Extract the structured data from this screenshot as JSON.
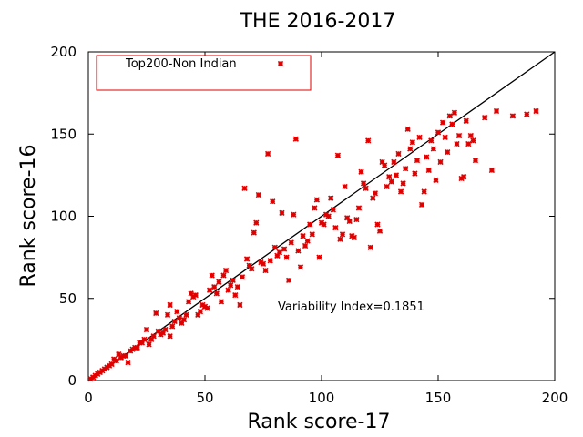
{
  "chart_data": {
    "type": "scatter",
    "title": "THE 2016-2017",
    "xlabel": "Rank score-17",
    "ylabel": "Rank score-16",
    "xlim": [
      0,
      200
    ],
    "ylim": [
      0,
      200
    ],
    "xticks": [
      0,
      50,
      100,
      150,
      200
    ],
    "yticks": [
      0,
      50,
      100,
      150,
      200
    ],
    "grid": false,
    "legend_position": "top-left",
    "reference_line": {
      "from": [
        0,
        0
      ],
      "to": [
        200,
        200
      ],
      "color": "#000000"
    },
    "annotation": "Variability Index=0.1851",
    "series": [
      {
        "name": "Top200-Non Indian",
        "color": "#e00000",
        "marker": "cross",
        "points": [
          [
            1,
            1
          ],
          [
            2,
            2
          ],
          [
            3,
            3
          ],
          [
            4,
            4
          ],
          [
            5,
            5
          ],
          [
            6,
            6
          ],
          [
            7,
            7
          ],
          [
            8,
            8
          ],
          [
            9,
            9
          ],
          [
            10,
            10
          ],
          [
            11,
            13
          ],
          [
            12,
            12
          ],
          [
            13,
            16
          ],
          [
            14,
            14
          ],
          [
            15,
            15
          ],
          [
            16,
            15
          ],
          [
            17,
            11
          ],
          [
            18,
            18
          ],
          [
            19,
            19
          ],
          [
            20,
            20
          ],
          [
            21,
            20
          ],
          [
            22,
            23
          ],
          [
            23,
            23
          ],
          [
            24,
            25
          ],
          [
            25,
            31
          ],
          [
            26,
            22
          ],
          [
            27,
            25
          ],
          [
            28,
            27
          ],
          [
            29,
            41
          ],
          [
            30,
            30
          ],
          [
            31,
            28
          ],
          [
            32,
            29
          ],
          [
            33,
            31
          ],
          [
            34,
            40
          ],
          [
            35,
            46
          ],
          [
            35,
            27
          ],
          [
            36,
            33
          ],
          [
            37,
            36
          ],
          [
            38,
            42
          ],
          [
            39,
            38
          ],
          [
            40,
            35
          ],
          [
            41,
            37
          ],
          [
            42,
            40
          ],
          [
            43,
            48
          ],
          [
            44,
            53
          ],
          [
            45,
            51
          ],
          [
            46,
            52
          ],
          [
            47,
            40
          ],
          [
            48,
            42
          ],
          [
            49,
            46
          ],
          [
            50,
            45
          ],
          [
            51,
            44
          ],
          [
            52,
            55
          ],
          [
            53,
            64
          ],
          [
            54,
            57
          ],
          [
            55,
            53
          ],
          [
            56,
            60
          ],
          [
            57,
            48
          ],
          [
            58,
            64
          ],
          [
            59,
            67
          ],
          [
            60,
            55
          ],
          [
            61,
            58
          ],
          [
            62,
            61
          ],
          [
            63,
            52
          ],
          [
            64,
            57
          ],
          [
            65,
            46
          ],
          [
            66,
            63
          ],
          [
            67,
            117
          ],
          [
            68,
            74
          ],
          [
            69,
            70
          ],
          [
            70,
            68
          ],
          [
            71,
            90
          ],
          [
            72,
            96
          ],
          [
            73,
            113
          ],
          [
            74,
            72
          ],
          [
            75,
            71
          ],
          [
            76,
            67
          ],
          [
            77,
            138
          ],
          [
            78,
            73
          ],
          [
            79,
            109
          ],
          [
            80,
            81
          ],
          [
            81,
            76
          ],
          [
            82,
            78
          ],
          [
            83,
            102
          ],
          [
            84,
            80
          ],
          [
            85,
            75
          ],
          [
            86,
            61
          ],
          [
            87,
            84
          ],
          [
            88,
            101
          ],
          [
            89,
            147
          ],
          [
            90,
            79
          ],
          [
            91,
            69
          ],
          [
            92,
            88
          ],
          [
            93,
            82
          ],
          [
            94,
            85
          ],
          [
            95,
            95
          ],
          [
            96,
            89
          ],
          [
            97,
            105
          ],
          [
            98,
            110
          ],
          [
            99,
            75
          ],
          [
            100,
            96
          ],
          [
            101,
            95
          ],
          [
            102,
            101
          ],
          [
            103,
            100
          ],
          [
            104,
            111
          ],
          [
            105,
            104
          ],
          [
            106,
            93
          ],
          [
            107,
            137
          ],
          [
            108,
            86
          ],
          [
            109,
            89
          ],
          [
            110,
            118
          ],
          [
            111,
            99
          ],
          [
            112,
            97
          ],
          [
            113,
            88
          ],
          [
            114,
            87
          ],
          [
            115,
            98
          ],
          [
            116,
            105
          ],
          [
            117,
            127
          ],
          [
            118,
            120
          ],
          [
            119,
            117
          ],
          [
            120,
            146
          ],
          [
            121,
            81
          ],
          [
            122,
            111
          ],
          [
            123,
            114
          ],
          [
            124,
            95
          ],
          [
            125,
            91
          ],
          [
            126,
            133
          ],
          [
            127,
            131
          ],
          [
            128,
            118
          ],
          [
            129,
            124
          ],
          [
            130,
            121
          ],
          [
            131,
            133
          ],
          [
            132,
            125
          ],
          [
            133,
            138
          ],
          [
            134,
            115
          ],
          [
            135,
            120
          ],
          [
            136,
            129
          ],
          [
            137,
            153
          ],
          [
            138,
            141
          ],
          [
            139,
            145
          ],
          [
            140,
            126
          ],
          [
            141,
            134
          ],
          [
            142,
            148
          ],
          [
            143,
            107
          ],
          [
            144,
            115
          ],
          [
            145,
            136
          ],
          [
            146,
            128
          ],
          [
            147,
            146
          ],
          [
            148,
            141
          ],
          [
            149,
            122
          ],
          [
            150,
            151
          ],
          [
            151,
            133
          ],
          [
            152,
            157
          ],
          [
            153,
            148
          ],
          [
            154,
            139
          ],
          [
            155,
            161
          ],
          [
            156,
            156
          ],
          [
            157,
            163
          ],
          [
            158,
            144
          ],
          [
            159,
            149
          ],
          [
            160,
            123
          ],
          [
            161,
            124
          ],
          [
            162,
            158
          ],
          [
            163,
            144
          ],
          [
            164,
            149
          ],
          [
            165,
            146
          ],
          [
            166,
            134
          ],
          [
            170,
            160
          ],
          [
            173,
            128
          ],
          [
            175,
            164
          ],
          [
            182,
            161
          ],
          [
            188,
            162
          ],
          [
            192,
            164
          ]
        ]
      }
    ]
  }
}
